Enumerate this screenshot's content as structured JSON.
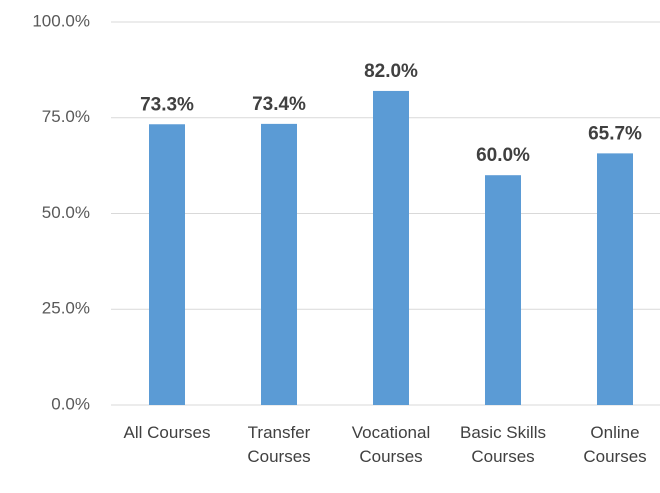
{
  "chart_data": {
    "type": "bar",
    "categories": [
      "All Courses",
      "Transfer Courses",
      "Vocational Courses",
      "Basic Skills Courses",
      "Online Courses"
    ],
    "values": [
      73.3,
      73.4,
      82.0,
      60.0,
      65.7
    ],
    "value_labels": [
      "73.3%",
      "73.4%",
      "82.0%",
      "60.0%",
      "65.7%"
    ],
    "color": "#5b9bd5",
    "ylim": [
      0,
      100
    ],
    "yticks": [
      {
        "value": 0,
        "label": "0.0%"
      },
      {
        "value": 25,
        "label": "25.0%"
      },
      {
        "value": 50,
        "label": "50.0%"
      },
      {
        "value": 75,
        "label": "75.0%"
      },
      {
        "value": 100,
        "label": "100.0%"
      }
    ],
    "grid": true
  }
}
